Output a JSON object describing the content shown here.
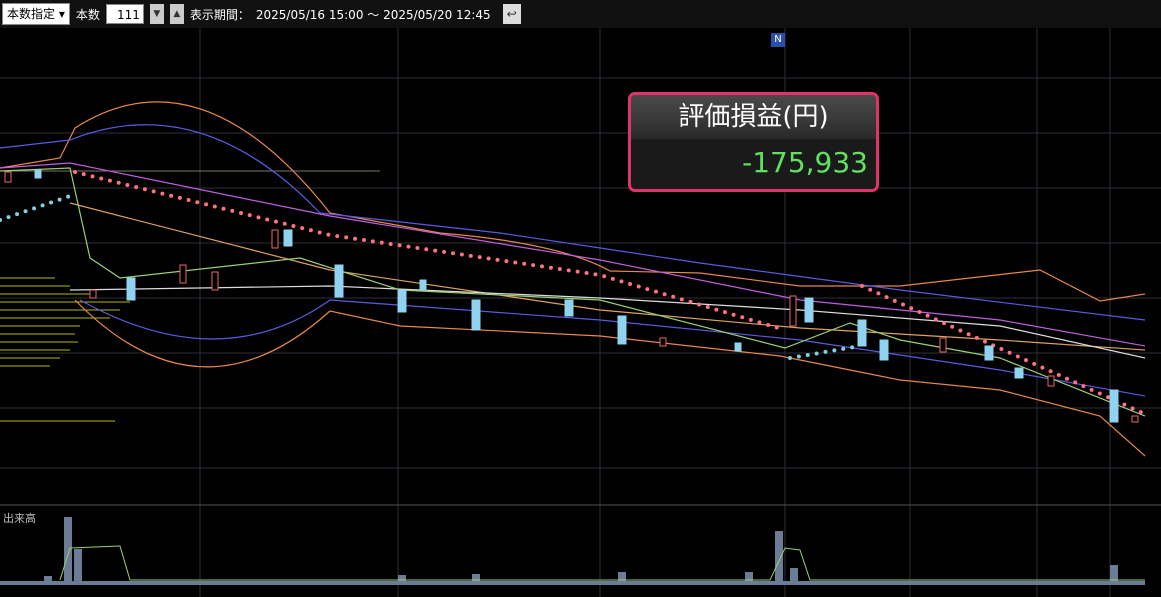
{
  "toolbar": {
    "mode": "本数指定",
    "count_label": "本数",
    "count": 111,
    "period_label": "表示期間：",
    "period": "2025/05/16 15:00 ～ 2025/05/20 12:45"
  },
  "marker": "N",
  "pnl": {
    "title": "評価損益(円)",
    "value": "-175,933"
  },
  "volume_label": "出来高"
}
